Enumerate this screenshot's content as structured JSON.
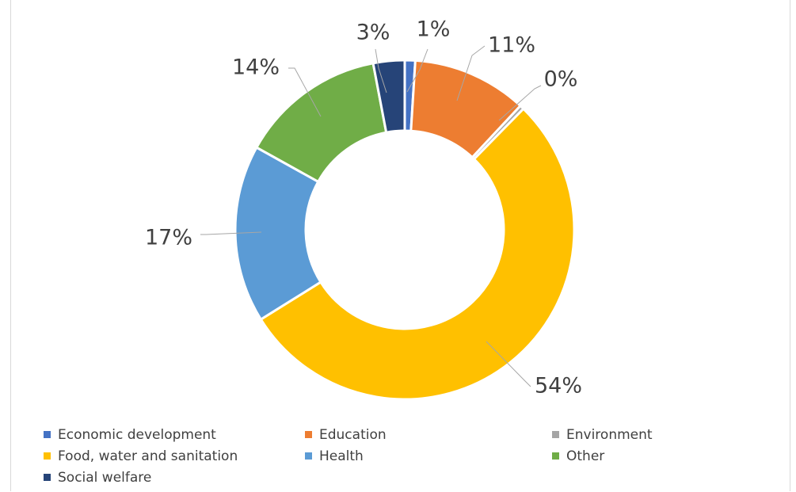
{
  "chart_data": {
    "type": "pie",
    "donut": true,
    "legend_position": "bottom",
    "series": [
      {
        "name": "",
        "slices": [
          {
            "label": "Economic development",
            "value": 1,
            "data_label": "1%",
            "color": "#4472c4"
          },
          {
            "label": "Education",
            "value": 11,
            "data_label": "11%",
            "color": "#ed7d31"
          },
          {
            "label": "Environment",
            "value": 0.4,
            "data_label": "0%",
            "color": "#a5a5a5"
          },
          {
            "label": "Food, water and sanitation",
            "value": 54,
            "data_label": "54%",
            "color": "#ffc000"
          },
          {
            "label": "Health",
            "value": 17,
            "data_label": "17%",
            "color": "#5b9bd5"
          },
          {
            "label": "Other",
            "value": 14,
            "data_label": "14%",
            "color": "#70ad47"
          },
          {
            "label": "Social welfare",
            "value": 3,
            "data_label": "3%",
            "color": "#264478"
          }
        ]
      }
    ]
  }
}
